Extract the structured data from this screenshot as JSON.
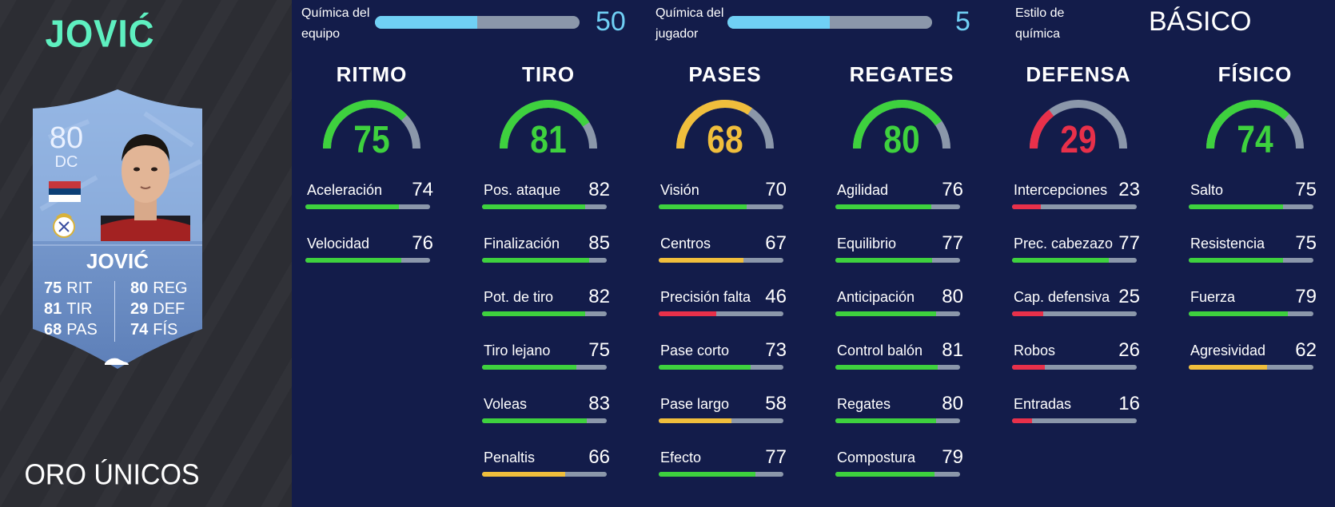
{
  "player": {
    "name": "JOVIĆ",
    "card_type": "ORO ÚNICOS"
  },
  "card": {
    "rating": "80",
    "position": "DC",
    "name": "JOVIĆ",
    "stats_left": [
      {
        "value": "75",
        "abbr": "RIT"
      },
      {
        "value": "81",
        "abbr": "TIR"
      },
      {
        "value": "68",
        "abbr": "PAS"
      }
    ],
    "stats_right": [
      {
        "value": "80",
        "abbr": "REG"
      },
      {
        "value": "29",
        "abbr": "DEF"
      },
      {
        "value": "74",
        "abbr": "FÍS"
      }
    ],
    "flag_colors": [
      "#c6363c",
      "#0c4076",
      "#ffffff"
    ]
  },
  "chemistry": {
    "team_label": "Química del equipo",
    "team_value": "50",
    "team_fraction": 0.5,
    "player_label": "Química del jugador",
    "player_value": "5",
    "player_fraction": 0.5,
    "style_label": "Estilo de química",
    "style_value": "BÁSICO"
  },
  "colors": {
    "high": "#3ed13e",
    "mid": "#f0be3c",
    "low": "#e8304a",
    "track": "#8b97aa",
    "chem": "#70d0f5",
    "name_accent": "#5ef0c0"
  },
  "categories": [
    {
      "title": "RITMO",
      "value": "75",
      "level": "high",
      "stats": [
        {
          "label": "Aceleración",
          "value": "74"
        },
        {
          "label": "Velocidad",
          "value": "76"
        }
      ]
    },
    {
      "title": "TIRO",
      "value": "81",
      "level": "high",
      "stats": [
        {
          "label": "Pos. ataque",
          "value": "82"
        },
        {
          "label": "Finalización",
          "value": "85"
        },
        {
          "label": "Pot. de tiro",
          "value": "82"
        },
        {
          "label": "Tiro lejano",
          "value": "75"
        },
        {
          "label": "Voleas",
          "value": "83"
        },
        {
          "label": "Penaltis",
          "value": "66"
        }
      ]
    },
    {
      "title": "PASES",
      "value": "68",
      "level": "mid",
      "stats": [
        {
          "label": "Visión",
          "value": "70"
        },
        {
          "label": "Centros",
          "value": "67"
        },
        {
          "label": "Precisión falta",
          "value": "46"
        },
        {
          "label": "Pase corto",
          "value": "73"
        },
        {
          "label": "Pase largo",
          "value": "58"
        },
        {
          "label": "Efecto",
          "value": "77"
        }
      ]
    },
    {
      "title": "REGATES",
      "value": "80",
      "level": "high",
      "stats": [
        {
          "label": "Agilidad",
          "value": "76"
        },
        {
          "label": "Equilibrio",
          "value": "77"
        },
        {
          "label": "Anticipación",
          "value": "80"
        },
        {
          "label": "Control balón",
          "value": "81"
        },
        {
          "label": "Regates",
          "value": "80"
        },
        {
          "label": "Compostura",
          "value": "79"
        }
      ]
    },
    {
      "title": "DEFENSA",
      "value": "29",
      "level": "low",
      "stats": [
        {
          "label": "Intercepciones",
          "value": "23"
        },
        {
          "label": "Prec. cabezazo",
          "value": "77"
        },
        {
          "label": "Cap. defensiva",
          "value": "25"
        },
        {
          "label": "Robos",
          "value": "26"
        },
        {
          "label": "Entradas",
          "value": "16"
        }
      ]
    },
    {
      "title": "FÍSICO",
      "value": "74",
      "level": "high",
      "stats": [
        {
          "label": "Salto",
          "value": "75"
        },
        {
          "label": "Resistencia",
          "value": "75"
        },
        {
          "label": "Fuerza",
          "value": "79"
        },
        {
          "label": "Agresividad",
          "value": "62"
        }
      ]
    }
  ]
}
